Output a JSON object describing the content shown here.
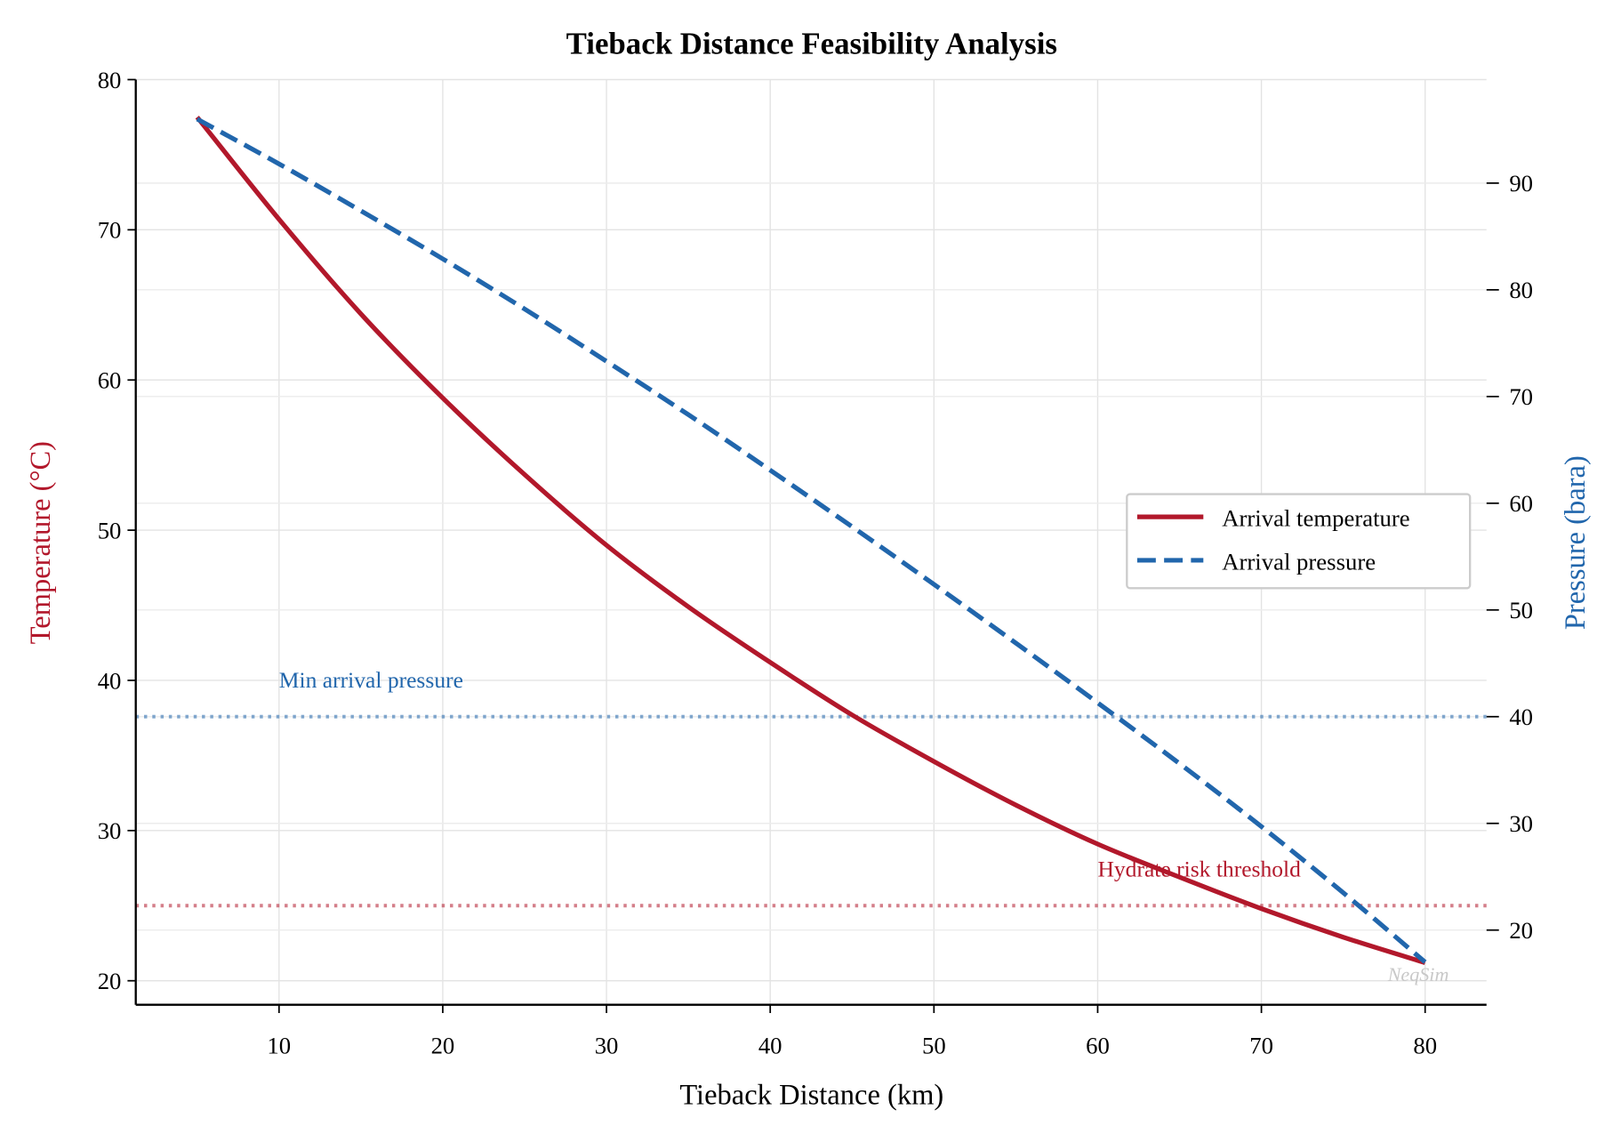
{
  "chart_data": {
    "type": "line",
    "title": "Tieback Distance Feasibility Analysis",
    "xlabel": "Tieback Distance (km)",
    "ylabel_left": "Temperature (°C)",
    "ylabel_right": "Pressure (bara)",
    "xlim": [
      1.25,
      83.75
    ],
    "ylim_left": [
      18.4,
      80
    ],
    "ylim_right": [
      13.0,
      99.7
    ],
    "xticks": [
      10,
      20,
      30,
      40,
      50,
      60,
      70,
      80
    ],
    "yticks_left": [
      20,
      30,
      40,
      50,
      60,
      70,
      80
    ],
    "yticks_right": [
      20,
      30,
      40,
      50,
      60,
      70,
      80,
      90
    ],
    "grid": true,
    "legend_position": "center-right",
    "x": [
      5,
      10,
      15,
      20,
      25,
      30,
      35,
      40,
      45,
      50,
      55,
      60,
      65,
      70,
      75,
      80
    ],
    "series": [
      {
        "name": "Arrival temperature",
        "axis": "left",
        "style": "solid",
        "color": "#b2182b",
        "values": [
          77.5,
          70.7,
          64.4,
          58.8,
          53.7,
          49.0,
          44.9,
          41.2,
          37.7,
          34.6,
          31.7,
          29.1,
          26.9,
          24.8,
          22.9,
          21.2
        ]
      },
      {
        "name": "Arrival pressure",
        "axis": "right",
        "style": "dashed",
        "color": "#2166ac",
        "values": [
          96.0,
          91.8,
          87.4,
          82.9,
          78.2,
          73.3,
          68.3,
          63.1,
          57.8,
          52.4,
          46.9,
          41.3,
          35.6,
          29.7,
          23.5,
          17.0
        ]
      }
    ],
    "thresholds": [
      {
        "label": "Hydrate risk threshold",
        "axis": "left",
        "value": 25,
        "color": "#b2182b"
      },
      {
        "label": "Min arrival pressure",
        "axis": "right",
        "value": 40,
        "color": "#2166ac"
      }
    ],
    "watermark": "NeqSim"
  }
}
